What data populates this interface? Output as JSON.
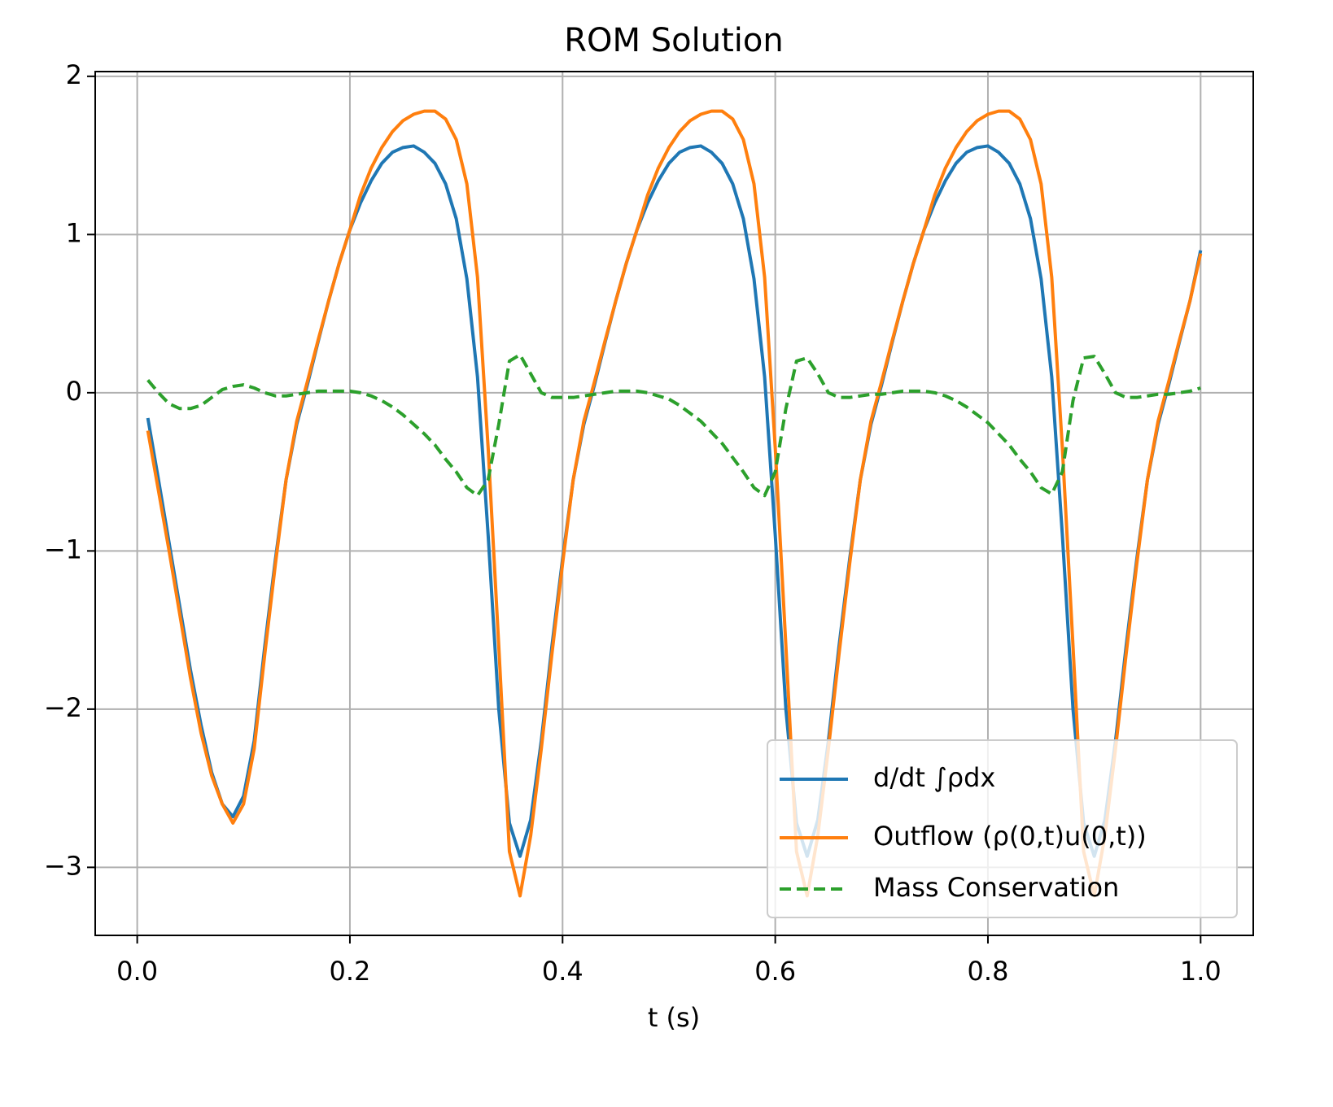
{
  "chart_data": {
    "type": "line",
    "title": "ROM Solution",
    "xlabel": "t (s)",
    "x": [
      0.01,
      0.02,
      0.03,
      0.04,
      0.05,
      0.06,
      0.07,
      0.08,
      0.09,
      0.1,
      0.11,
      0.12,
      0.13,
      0.14,
      0.15,
      0.16,
      0.17,
      0.18,
      0.19,
      0.2,
      0.21,
      0.22,
      0.23,
      0.24,
      0.25,
      0.26,
      0.27,
      0.28,
      0.29,
      0.3,
      0.31,
      0.32,
      0.33,
      0.34,
      0.35,
      0.36,
      0.37,
      0.38,
      0.39,
      0.4,
      0.41,
      0.42,
      0.43,
      0.44,
      0.45,
      0.46,
      0.47,
      0.48,
      0.49,
      0.5,
      0.51,
      0.52,
      0.53,
      0.54,
      0.55,
      0.56,
      0.57,
      0.58,
      0.59,
      0.6,
      0.61,
      0.62,
      0.63,
      0.64,
      0.65,
      0.66,
      0.67,
      0.68,
      0.69,
      0.7,
      0.71,
      0.72,
      0.73,
      0.74,
      0.75,
      0.76,
      0.77,
      0.78,
      0.79,
      0.8,
      0.81,
      0.82,
      0.83,
      0.84,
      0.85,
      0.86,
      0.87,
      0.88,
      0.89,
      0.9,
      0.91,
      0.92,
      0.93,
      0.94,
      0.95,
      0.96,
      0.97,
      0.98,
      0.99,
      1.0
    ],
    "series": [
      {
        "name": "d/dt ∫ρdx",
        "color": "#1f77b4",
        "dash": false,
        "values": [
          -0.16,
          -0.55,
          -0.95,
          -1.35,
          -1.75,
          -2.1,
          -2.4,
          -2.6,
          -2.68,
          -2.55,
          -2.2,
          -1.6,
          -1.05,
          -0.55,
          -0.2,
          0.05,
          0.32,
          0.58,
          0.82,
          1.03,
          1.2,
          1.34,
          1.45,
          1.52,
          1.55,
          1.56,
          1.52,
          1.45,
          1.32,
          1.1,
          0.72,
          0.1,
          -0.9,
          -2.0,
          -2.72,
          -2.93,
          -2.7,
          -2.2,
          -1.6,
          -1.05,
          -0.55,
          -0.2,
          0.05,
          0.32,
          0.58,
          0.82,
          1.03,
          1.2,
          1.34,
          1.45,
          1.52,
          1.55,
          1.56,
          1.52,
          1.45,
          1.32,
          1.1,
          0.72,
          0.1,
          -0.9,
          -2.0,
          -2.72,
          -2.93,
          -2.7,
          -2.2,
          -1.6,
          -1.05,
          -0.55,
          -0.2,
          0.05,
          0.32,
          0.58,
          0.82,
          1.03,
          1.2,
          1.34,
          1.45,
          1.52,
          1.55,
          1.56,
          1.52,
          1.45,
          1.32,
          1.1,
          0.72,
          0.1,
          -0.9,
          -2.0,
          -2.72,
          -2.93,
          -2.7,
          -2.2,
          -1.6,
          -1.05,
          -0.55,
          -0.2,
          0.05,
          0.32,
          0.58,
          0.9
        ]
      },
      {
        "name": "Outflow (ρ(0,t)u(0,t))",
        "color": "#ff7f0e",
        "dash": false,
        "values": [
          -0.24,
          -0.62,
          -1.0,
          -1.4,
          -1.8,
          -2.15,
          -2.42,
          -2.6,
          -2.72,
          -2.6,
          -2.25,
          -1.65,
          -1.08,
          -0.55,
          -0.18,
          0.07,
          0.33,
          0.58,
          0.82,
          1.03,
          1.25,
          1.42,
          1.55,
          1.65,
          1.72,
          1.76,
          1.78,
          1.78,
          1.73,
          1.6,
          1.32,
          0.73,
          -0.35,
          -1.6,
          -2.9,
          -3.18,
          -2.8,
          -2.25,
          -1.65,
          -1.08,
          -0.55,
          -0.18,
          0.07,
          0.33,
          0.58,
          0.82,
          1.03,
          1.25,
          1.42,
          1.55,
          1.65,
          1.72,
          1.76,
          1.78,
          1.78,
          1.73,
          1.6,
          1.32,
          0.73,
          -0.35,
          -1.6,
          -2.9,
          -3.18,
          -2.8,
          -2.25,
          -1.65,
          -1.08,
          -0.55,
          -0.18,
          0.07,
          0.33,
          0.58,
          0.82,
          1.03,
          1.25,
          1.42,
          1.55,
          1.65,
          1.72,
          1.76,
          1.78,
          1.78,
          1.73,
          1.6,
          1.32,
          0.73,
          -0.35,
          -1.6,
          -2.9,
          -3.18,
          -2.8,
          -2.25,
          -1.65,
          -1.08,
          -0.55,
          -0.18,
          0.07,
          0.33,
          0.58,
          0.88
        ]
      },
      {
        "name": "Mass Conservation",
        "color": "#2ca02c",
        "dash": true,
        "values": [
          0.08,
          0,
          -0.07,
          -0.1,
          -0.1,
          -0.08,
          -0.03,
          0.02,
          0.04,
          0.05,
          0.03,
          0,
          -0.02,
          -0.02,
          -0.01,
          0,
          0.01,
          0.01,
          0.01,
          0.01,
          0,
          -0.02,
          -0.05,
          -0.09,
          -0.14,
          -0.2,
          -0.26,
          -0.33,
          -0.42,
          -0.5,
          -0.6,
          -0.65,
          -0.55,
          -0.2,
          0.2,
          0.24,
          0.12,
          0,
          -0.03,
          -0.03,
          -0.03,
          -0.02,
          -0.01,
          0,
          0.01,
          0.01,
          0.01,
          0,
          -0.02,
          -0.04,
          -0.08,
          -0.13,
          -0.18,
          -0.25,
          -0.32,
          -0.41,
          -0.5,
          -0.6,
          -0.65,
          -0.5,
          -0.1,
          0.2,
          0.22,
          0.12,
          0,
          -0.03,
          -0.03,
          -0.02,
          -0.01,
          -0.01,
          0,
          0.01,
          0.01,
          0.01,
          0,
          -0.02,
          -0.05,
          -0.09,
          -0.14,
          -0.19,
          -0.26,
          -0.33,
          -0.42,
          -0.5,
          -0.6,
          -0.64,
          -0.5,
          -0.05,
          0.22,
          0.23,
          0.12,
          0,
          -0.03,
          -0.03,
          -0.02,
          -0.01,
          -0.01,
          0,
          0.01,
          0.03
        ]
      }
    ],
    "xlim": [
      -0.0395,
      1.0495
    ],
    "ylim": [
      -3.43,
      2.03
    ],
    "xticks": [
      {
        "value": 0,
        "label": "0.0"
      },
      {
        "value": 0.2,
        "label": "0.2"
      },
      {
        "value": 0.4,
        "label": "0.4"
      },
      {
        "value": 0.6,
        "label": "0.6"
      },
      {
        "value": 0.8,
        "label": "0.8"
      },
      {
        "value": 1,
        "label": "1.0"
      }
    ],
    "yticks": [
      {
        "value": -3,
        "label": "−3"
      },
      {
        "value": -2,
        "label": "−2"
      },
      {
        "value": -1,
        "label": "−1"
      },
      0,
      1,
      2
    ],
    "grid": true,
    "legend": "lower right"
  }
}
